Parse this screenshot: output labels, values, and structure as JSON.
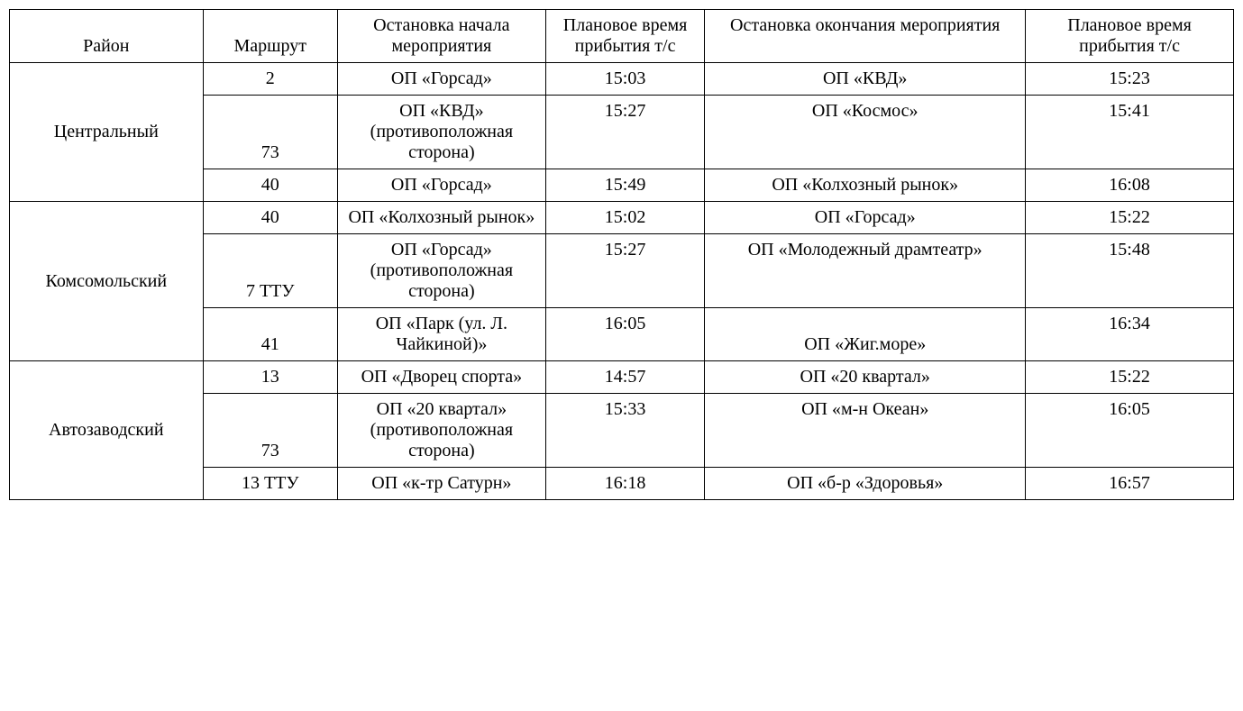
{
  "table": {
    "columns": [
      "Район",
      "Маршрут",
      "Остановка начала мероприятия",
      "Плановое время прибытия т/с",
      "Остановка окончания мероприятия",
      "Плановое время прибытия т/с"
    ],
    "groups": [
      {
        "district": "Центральный",
        "rows": [
          {
            "route": "2",
            "start_stop": "ОП «Горсад»",
            "start_time": "15:03",
            "end_stop": "ОП «КВД»",
            "end_time": "15:23"
          },
          {
            "route": "73",
            "start_stop": "ОП «КВД» (противоположная сторона)",
            "start_time": "15:27",
            "end_stop": "ОП «Космос»",
            "end_time": "15:41"
          },
          {
            "route": "40",
            "start_stop": "ОП «Горсад»",
            "start_time": "15:49",
            "end_stop": "ОП «Колхозный рынок»",
            "end_time": "16:08"
          }
        ]
      },
      {
        "district": "Комсомольский",
        "rows": [
          {
            "route": "40",
            "start_stop": "ОП «Колхозный рынок»",
            "start_time": "15:02",
            "end_stop": "ОП «Горсад»",
            "end_time": "15:22"
          },
          {
            "route": "7 ТТУ",
            "start_stop": "ОП «Горсад» (противоположная сторона)",
            "start_time": "15:27",
            "end_stop": "ОП «Молодежный драмтеатр»",
            "end_time": "15:48"
          },
          {
            "route": "41",
            "start_stop": "ОП «Парк (ул. Л. Чайкиной)»",
            "start_time": "16:05",
            "end_stop": "ОП «Жиг.море»",
            "end_time": "16:34"
          }
        ]
      },
      {
        "district": "Автозаводский",
        "rows": [
          {
            "route": "13",
            "start_stop": "ОП «Дворец спорта»",
            "start_time": "14:57",
            "end_stop": "ОП «20 квартал»",
            "end_time": "15:22"
          },
          {
            "route": "73",
            "start_stop": "ОП «20 квартал» (противоположная сторона)",
            "start_time": "15:33",
            "end_stop": "ОП «м-н Океан»",
            "end_time": "16:05"
          },
          {
            "route": "13 ТТУ",
            "start_stop": "ОП «к-тр Сатурн»",
            "start_time": "16:18",
            "end_stop": "ОП «б-р «Здоровья»",
            "end_time": "16:57"
          }
        ]
      }
    ],
    "border_color": "#000000",
    "text_color": "#000000",
    "background_color": "#ffffff",
    "font_family": "Times New Roman",
    "font_size_pt": 15
  }
}
